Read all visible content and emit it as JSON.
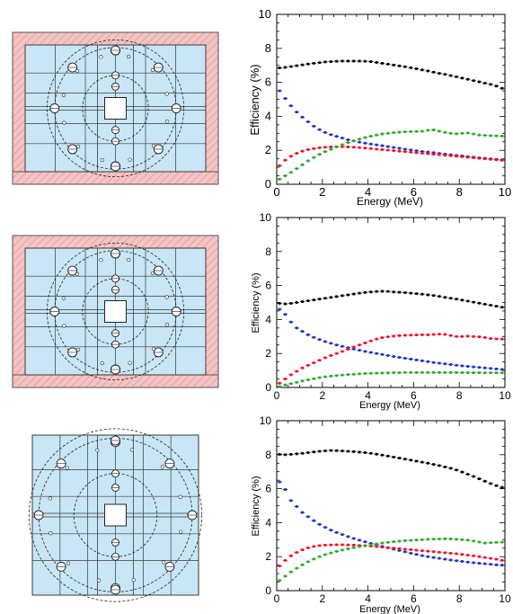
{
  "colors": {
    "black": "#000000",
    "blue": "#1f2fb8",
    "red": "#e8102a",
    "green": "#2ea52e",
    "shield_fill": "#f4c4c4",
    "shield_hatch": "#d98a8a",
    "module_fill": "#c8e6f5",
    "module_line": "#3a3a3a"
  },
  "schematics": [
    {
      "name": "top-schematic",
      "has_shield": true
    },
    {
      "name": "middle-schematic",
      "has_shield": true
    },
    {
      "name": "bottom-schematic",
      "has_shield": false
    }
  ],
  "chart_data": [
    {
      "type": "line",
      "xlabel": "Energy (MeV)",
      "ylabel": "Efficiency (%)",
      "xlim": [
        0,
        10
      ],
      "ylim": [
        0,
        10
      ],
      "xticks": [
        0,
        2,
        4,
        6,
        8,
        10
      ],
      "yticks": [
        0,
        2,
        4,
        6,
        8,
        10
      ],
      "grid": false,
      "error_bars": "horizontal",
      "x": [
        0.125,
        0.375,
        0.625,
        0.875,
        1.125,
        1.375,
        1.625,
        1.875,
        2.125,
        2.375,
        2.625,
        2.875,
        3.125,
        3.375,
        3.625,
        3.875,
        4.125,
        4.375,
        4.625,
        4.875,
        5.125,
        5.375,
        5.625,
        5.875,
        6.125,
        6.375,
        6.625,
        6.875,
        7.125,
        7.375,
        7.625,
        7.875,
        8.125,
        8.375,
        8.625,
        8.875,
        9.125,
        9.375,
        9.625,
        9.875
      ],
      "series": [
        {
          "color": "black",
          "values": [
            6.85,
            6.88,
            6.93,
            6.98,
            7.03,
            7.08,
            7.12,
            7.16,
            7.2,
            7.22,
            7.24,
            7.25,
            7.25,
            7.25,
            7.25,
            7.24,
            7.22,
            7.17,
            7.12,
            7.07,
            7.02,
            6.97,
            6.92,
            6.86,
            6.8,
            6.73,
            6.67,
            6.6,
            6.53,
            6.47,
            6.4,
            6.33,
            6.25,
            6.18,
            6.1,
            6.03,
            5.95,
            5.88,
            5.78,
            5.65
          ]
        },
        {
          "color": "blue",
          "values": [
            5.5,
            5.05,
            4.62,
            4.25,
            3.95,
            3.68,
            3.42,
            3.22,
            3.05,
            2.92,
            2.82,
            2.72,
            2.62,
            2.55,
            2.48,
            2.42,
            2.37,
            2.32,
            2.27,
            2.22,
            2.17,
            2.12,
            2.07,
            2.02,
            1.97,
            1.93,
            1.9,
            1.86,
            1.82,
            1.78,
            1.74,
            1.7,
            1.67,
            1.63,
            1.6,
            1.56,
            1.53,
            1.5,
            1.47,
            1.44
          ]
        },
        {
          "color": "red",
          "values": [
            1.1,
            1.42,
            1.65,
            1.82,
            1.95,
            2.04,
            2.1,
            2.15,
            2.18,
            2.2,
            2.21,
            2.21,
            2.2,
            2.18,
            2.16,
            2.13,
            2.1,
            2.07,
            2.04,
            2.01,
            1.98,
            1.95,
            1.92,
            1.89,
            1.86,
            1.83,
            1.8,
            1.77,
            1.74,
            1.71,
            1.68,
            1.65,
            1.62,
            1.59,
            1.56,
            1.53,
            1.5,
            1.47,
            1.44,
            1.41
          ]
        },
        {
          "color": "green",
          "values": [
            0.3,
            0.5,
            0.7,
            0.92,
            1.15,
            1.38,
            1.58,
            1.76,
            1.92,
            2.06,
            2.2,
            2.33,
            2.45,
            2.56,
            2.66,
            2.75,
            2.83,
            2.9,
            2.96,
            3.0,
            3.04,
            3.07,
            3.09,
            3.1,
            3.11,
            3.12,
            3.18,
            3.2,
            3.13,
            3.06,
            3.0,
            2.97,
            3.0,
            3.02,
            2.96,
            2.9,
            2.88,
            2.86,
            2.85,
            2.84
          ]
        }
      ]
    },
    {
      "type": "line",
      "xlabel": "Energy (MeV)",
      "ylabel": "Efficiency (%)",
      "xlim": [
        0,
        10
      ],
      "ylim": [
        0,
        10
      ],
      "xticks": [
        0,
        2,
        4,
        6,
        8,
        10
      ],
      "yticks": [
        0,
        2,
        4,
        6,
        8,
        10
      ],
      "grid": false,
      "error_bars": "horizontal",
      "x": [
        0.125,
        0.375,
        0.625,
        0.875,
        1.125,
        1.375,
        1.625,
        1.875,
        2.125,
        2.375,
        2.625,
        2.875,
        3.125,
        3.375,
        3.625,
        3.875,
        4.125,
        4.375,
        4.625,
        4.875,
        5.125,
        5.375,
        5.625,
        5.875,
        6.125,
        6.375,
        6.625,
        6.875,
        7.125,
        7.375,
        7.625,
        7.875,
        8.125,
        8.375,
        8.625,
        8.875,
        9.125,
        9.375,
        9.625,
        9.875
      ],
      "series": [
        {
          "color": "black",
          "values": [
            4.95,
            4.92,
            4.95,
            5.0,
            5.05,
            5.1,
            5.15,
            5.2,
            5.25,
            5.3,
            5.35,
            5.4,
            5.45,
            5.5,
            5.55,
            5.59,
            5.62,
            5.65,
            5.66,
            5.65,
            5.62,
            5.6,
            5.58,
            5.55,
            5.52,
            5.49,
            5.45,
            5.41,
            5.36,
            5.3,
            5.25,
            5.2,
            5.14,
            5.08,
            5.02,
            4.96,
            4.9,
            4.84,
            4.78,
            4.72
          ]
        },
        {
          "color": "blue",
          "values": [
            4.6,
            4.3,
            3.85,
            3.5,
            3.3,
            3.1,
            2.95,
            2.82,
            2.7,
            2.6,
            2.5,
            2.42,
            2.34,
            2.26,
            2.19,
            2.12,
            2.06,
            2.0,
            1.94,
            1.88,
            1.82,
            1.77,
            1.72,
            1.67,
            1.62,
            1.57,
            1.52,
            1.47,
            1.43,
            1.39,
            1.35,
            1.31,
            1.27,
            1.24,
            1.21,
            1.18,
            1.15,
            1.12,
            1.09,
            1.06
          ]
        },
        {
          "color": "red",
          "values": [
            0.25,
            0.5,
            0.75,
            0.95,
            1.15,
            1.3,
            1.45,
            1.6,
            1.75,
            1.88,
            2.0,
            2.12,
            2.25,
            2.38,
            2.5,
            2.62,
            2.74,
            2.85,
            2.93,
            2.98,
            3.02,
            3.05,
            3.07,
            3.08,
            3.09,
            3.1,
            3.1,
            3.12,
            3.14,
            3.12,
            3.06,
            3.0,
            3.0,
            3.02,
            3.0,
            2.98,
            2.94,
            2.88,
            2.86,
            2.85
          ]
        },
        {
          "color": "green",
          "values": [
            0.05,
            0.15,
            0.22,
            0.3,
            0.38,
            0.45,
            0.52,
            0.58,
            0.63,
            0.67,
            0.7,
            0.73,
            0.76,
            0.78,
            0.8,
            0.82,
            0.83,
            0.84,
            0.85,
            0.86,
            0.87,
            0.87,
            0.88,
            0.88,
            0.88,
            0.88,
            0.88,
            0.88,
            0.88,
            0.88,
            0.88,
            0.88,
            0.87,
            0.87,
            0.87,
            0.87,
            0.86,
            0.86,
            0.86,
            0.86
          ]
        }
      ]
    },
    {
      "type": "line",
      "xlabel": "Energy (MeV)",
      "ylabel": "Efficiency (%)",
      "xlim": [
        0,
        10
      ],
      "ylim": [
        0,
        10
      ],
      "xticks": [
        0,
        2,
        4,
        6,
        8,
        10
      ],
      "yticks": [
        0,
        2,
        4,
        6,
        8,
        10
      ],
      "grid": false,
      "error_bars": "horizontal",
      "x": [
        0.125,
        0.375,
        0.625,
        0.875,
        1.125,
        1.375,
        1.625,
        1.875,
        2.125,
        2.375,
        2.625,
        2.875,
        3.125,
        3.375,
        3.625,
        3.875,
        4.125,
        4.375,
        4.625,
        4.875,
        5.125,
        5.375,
        5.625,
        5.875,
        6.125,
        6.375,
        6.625,
        6.875,
        7.125,
        7.375,
        7.625,
        7.875,
        8.125,
        8.375,
        8.625,
        8.875,
        9.125,
        9.375,
        9.625,
        9.875
      ],
      "series": [
        {
          "color": "black",
          "values": [
            8.02,
            8.0,
            8.02,
            8.05,
            8.08,
            8.12,
            8.16,
            8.2,
            8.23,
            8.25,
            8.24,
            8.22,
            8.2,
            8.18,
            8.15,
            8.12,
            8.08,
            8.03,
            7.98,
            7.92,
            7.86,
            7.8,
            7.74,
            7.68,
            7.62,
            7.56,
            7.5,
            7.43,
            7.36,
            7.28,
            7.2,
            7.1,
            6.98,
            6.85,
            6.72,
            6.58,
            6.44,
            6.3,
            6.18,
            6.08
          ]
        },
        {
          "color": "blue",
          "values": [
            6.4,
            5.95,
            5.3,
            4.95,
            4.6,
            4.35,
            4.12,
            3.9,
            3.72,
            3.56,
            3.42,
            3.3,
            3.18,
            3.07,
            2.97,
            2.87,
            2.78,
            2.69,
            2.6,
            2.52,
            2.44,
            2.36,
            2.28,
            2.2,
            2.13,
            2.06,
            2.0,
            1.95,
            1.9,
            1.85,
            1.8,
            1.76,
            1.72,
            1.68,
            1.64,
            1.61,
            1.58,
            1.55,
            1.52,
            1.5
          ]
        },
        {
          "color": "red",
          "values": [
            1.45,
            1.78,
            2.05,
            2.25,
            2.4,
            2.52,
            2.6,
            2.65,
            2.68,
            2.69,
            2.7,
            2.7,
            2.69,
            2.68,
            2.66,
            2.64,
            2.62,
            2.59,
            2.56,
            2.53,
            2.5,
            2.47,
            2.44,
            2.41,
            2.38,
            2.35,
            2.32,
            2.29,
            2.26,
            2.23,
            2.2,
            2.17,
            2.13,
            2.09,
            2.05,
            2.0,
            1.95,
            1.9,
            1.85,
            1.78
          ]
        },
        {
          "color": "green",
          "values": [
            0.6,
            0.85,
            1.1,
            1.32,
            1.52,
            1.7,
            1.86,
            2.0,
            2.12,
            2.22,
            2.31,
            2.39,
            2.46,
            2.53,
            2.59,
            2.65,
            2.7,
            2.75,
            2.8,
            2.84,
            2.88,
            2.91,
            2.94,
            2.96,
            2.98,
            3.0,
            3.02,
            3.03,
            3.04,
            3.05,
            3.04,
            3.02,
            3.0,
            2.97,
            2.92,
            2.86,
            2.8,
            2.82,
            2.84,
            2.85
          ]
        }
      ]
    }
  ]
}
